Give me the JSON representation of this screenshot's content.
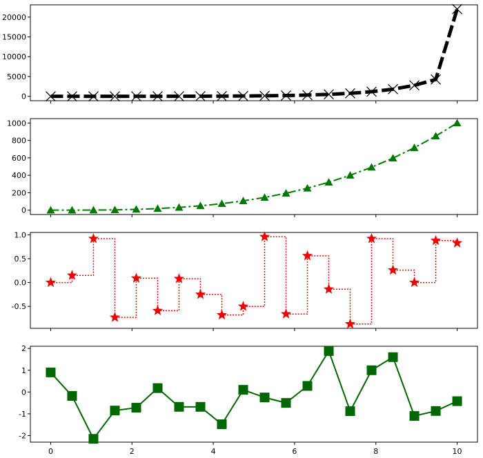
{
  "chart_data": [
    {
      "type": "line",
      "x": [
        0,
        0.5263,
        1.0526,
        1.5789,
        2.1053,
        2.6316,
        3.1579,
        3.6842,
        4.2105,
        4.7368,
        5.2632,
        5.7895,
        6.3158,
        6.8421,
        7.3684,
        7.8947,
        8.4211,
        8.9474,
        9.4737,
        10
      ],
      "series": [
        {
          "values": [
            0,
            1,
            2,
            5,
            8,
            14,
            23,
            37,
            57,
            90,
            138,
            212,
            326,
            500,
            768,
            1178,
            1808,
            2775,
            4259,
            22026
          ],
          "color": "#000000",
          "linestyle": "dashed",
          "marker": "x"
        }
      ],
      "ylim": [
        -1100,
        23100
      ],
      "xlim": [
        -0.5,
        10.5
      ],
      "yticks": [
        0,
        5000,
        10000,
        15000,
        20000
      ],
      "ytick_labels": [
        "0",
        "5000",
        "10000",
        "15000",
        "20000"
      ]
    },
    {
      "type": "line",
      "x": [
        0,
        0.5263,
        1.0526,
        1.5789,
        2.1053,
        2.6316,
        3.1579,
        3.6842,
        4.2105,
        4.7368,
        5.2632,
        5.7895,
        6.3158,
        6.8421,
        7.3684,
        7.8947,
        8.4211,
        8.9474,
        9.4737,
        10
      ],
      "series": [
        {
          "values": [
            0,
            0.15,
            1.2,
            3.9,
            9.3,
            18.2,
            31.5,
            50,
            74.6,
            106.3,
            145.8,
            194.1,
            251.9,
            320.3,
            400.1,
            492.1,
            597.2,
            716.3,
            850.2,
            1000
          ],
          "color": "#007700",
          "linestyle": "dashdot",
          "marker": "triangle"
        }
      ],
      "ylim": [
        -50,
        1050
      ],
      "xlim": [
        -0.5,
        10.5
      ],
      "yticks": [
        0,
        200,
        400,
        600,
        800,
        1000
      ],
      "ytick_labels": [
        "0",
        "200",
        "400",
        "600",
        "800",
        "1000"
      ]
    },
    {
      "type": "line",
      "x": [
        0,
        0.5263,
        1.0526,
        1.5789,
        2.1053,
        2.6316,
        3.1579,
        3.6842,
        4.2105,
        4.7368,
        5.2632,
        5.7895,
        6.3158,
        6.8421,
        7.3684,
        7.8947,
        8.4211,
        8.9474,
        9.4737,
        10
      ],
      "series": [
        {
          "values": [
            0,
            0.15,
            0.92,
            -0.73,
            0.09,
            -0.59,
            0.08,
            -0.25,
            -0.68,
            -0.5,
            0.96,
            -0.66,
            0.56,
            -0.14,
            -0.87,
            0.92,
            0.26,
            0.0,
            0.88,
            0.83
          ],
          "color": "#ee0000",
          "linestyle": "dotted",
          "drawstyle": "steps-post",
          "marker": "star"
        }
      ],
      "ylim": [
        -0.96,
        1.05
      ],
      "xlim": [
        -0.5,
        10.5
      ],
      "yticks": [
        -0.5,
        0,
        0.5,
        1
      ],
      "ytick_labels": [
        "-0.5",
        "0.0",
        "0.5",
        "1.0"
      ]
    },
    {
      "type": "line",
      "x": [
        0,
        0.5263,
        1.0526,
        1.5789,
        2.1053,
        2.6316,
        3.1579,
        3.6842,
        4.2105,
        4.7368,
        5.2632,
        5.7895,
        6.3158,
        6.8421,
        7.3684,
        7.8947,
        8.4211,
        8.9474,
        9.4737,
        10
      ],
      "series": [
        {
          "values": [
            0.9,
            -0.18,
            -2.15,
            -0.85,
            -0.72,
            0.18,
            -0.68,
            -0.68,
            -1.48,
            0.1,
            -0.25,
            -0.5,
            0.28,
            1.88,
            -0.88,
            1.0,
            1.6,
            -1.1,
            -0.87,
            -0.42
          ],
          "color": "#006600",
          "linestyle": "solid",
          "marker": "square"
        }
      ],
      "ylim": [
        -2.3,
        2.1
      ],
      "xlim": [
        -0.5,
        10.5
      ],
      "yticks": [
        -2,
        -1,
        0,
        1,
        2
      ],
      "ytick_labels": [
        "-2",
        "-1",
        "0",
        "1",
        "2"
      ],
      "xticks": [
        0,
        2,
        4,
        6,
        8,
        10
      ],
      "xtick_labels": [
        "0",
        "2",
        "4",
        "6",
        "8",
        "10"
      ]
    }
  ]
}
